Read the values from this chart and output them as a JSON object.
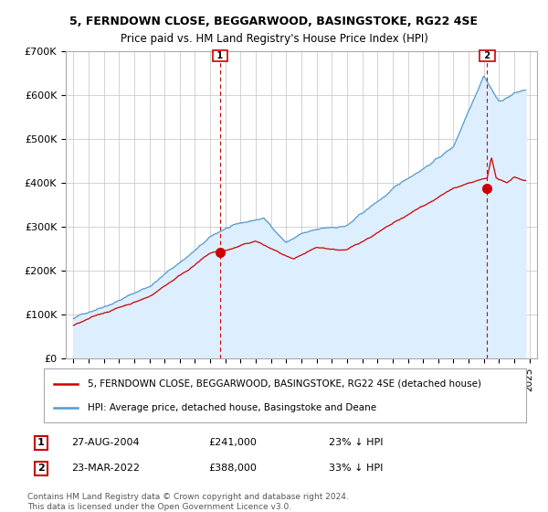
{
  "title_line1": "5, FERNDOWN CLOSE, BEGGARWOOD, BASINGSTOKE, RG22 4SE",
  "title_line2": "Price paid vs. HM Land Registry's House Price Index (HPI)",
  "legend_label1": "5, FERNDOWN CLOSE, BEGGARWOOD, BASINGSTOKE, RG22 4SE (detached house)",
  "legend_label2": "HPI: Average price, detached house, Basingstoke and Deane",
  "annotation1": {
    "num": "1",
    "date": "27-AUG-2004",
    "price": "£241,000",
    "pct": "23% ↓ HPI"
  },
  "annotation2": {
    "num": "2",
    "date": "23-MAR-2022",
    "price": "£388,000",
    "pct": "33% ↓ HPI"
  },
  "footer": "Contains HM Land Registry data © Crown copyright and database right 2024.\nThis data is licensed under the Open Government Licence v3.0.",
  "price_color": "#cc0000",
  "hpi_color": "#5599cc",
  "hpi_fill_color": "#ddeeff",
  "marker1_x": 2004.65,
  "marker2_x": 2022.22,
  "marker1_y": 241000,
  "marker2_y": 388000,
  "ylim": [
    0,
    700000
  ],
  "xlim": [
    1994.5,
    2025.5
  ],
  "yticks": [
    0,
    100000,
    200000,
    300000,
    400000,
    500000,
    600000,
    700000
  ],
  "ytick_labels": [
    "£0",
    "£100K",
    "£200K",
    "£300K",
    "£400K",
    "£500K",
    "£600K",
    "£700K"
  ],
  "xticks": [
    1995,
    1996,
    1997,
    1998,
    1999,
    2000,
    2001,
    2002,
    2003,
    2004,
    2005,
    2006,
    2007,
    2008,
    2009,
    2010,
    2011,
    2012,
    2013,
    2014,
    2015,
    2016,
    2017,
    2018,
    2019,
    2020,
    2021,
    2022,
    2023,
    2024,
    2025
  ]
}
